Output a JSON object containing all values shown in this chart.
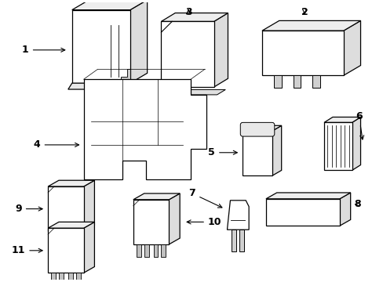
{
  "background_color": "#ffffff",
  "line_color": "#000000",
  "line_width": 0.9,
  "fig_width": 4.89,
  "fig_height": 3.6
}
